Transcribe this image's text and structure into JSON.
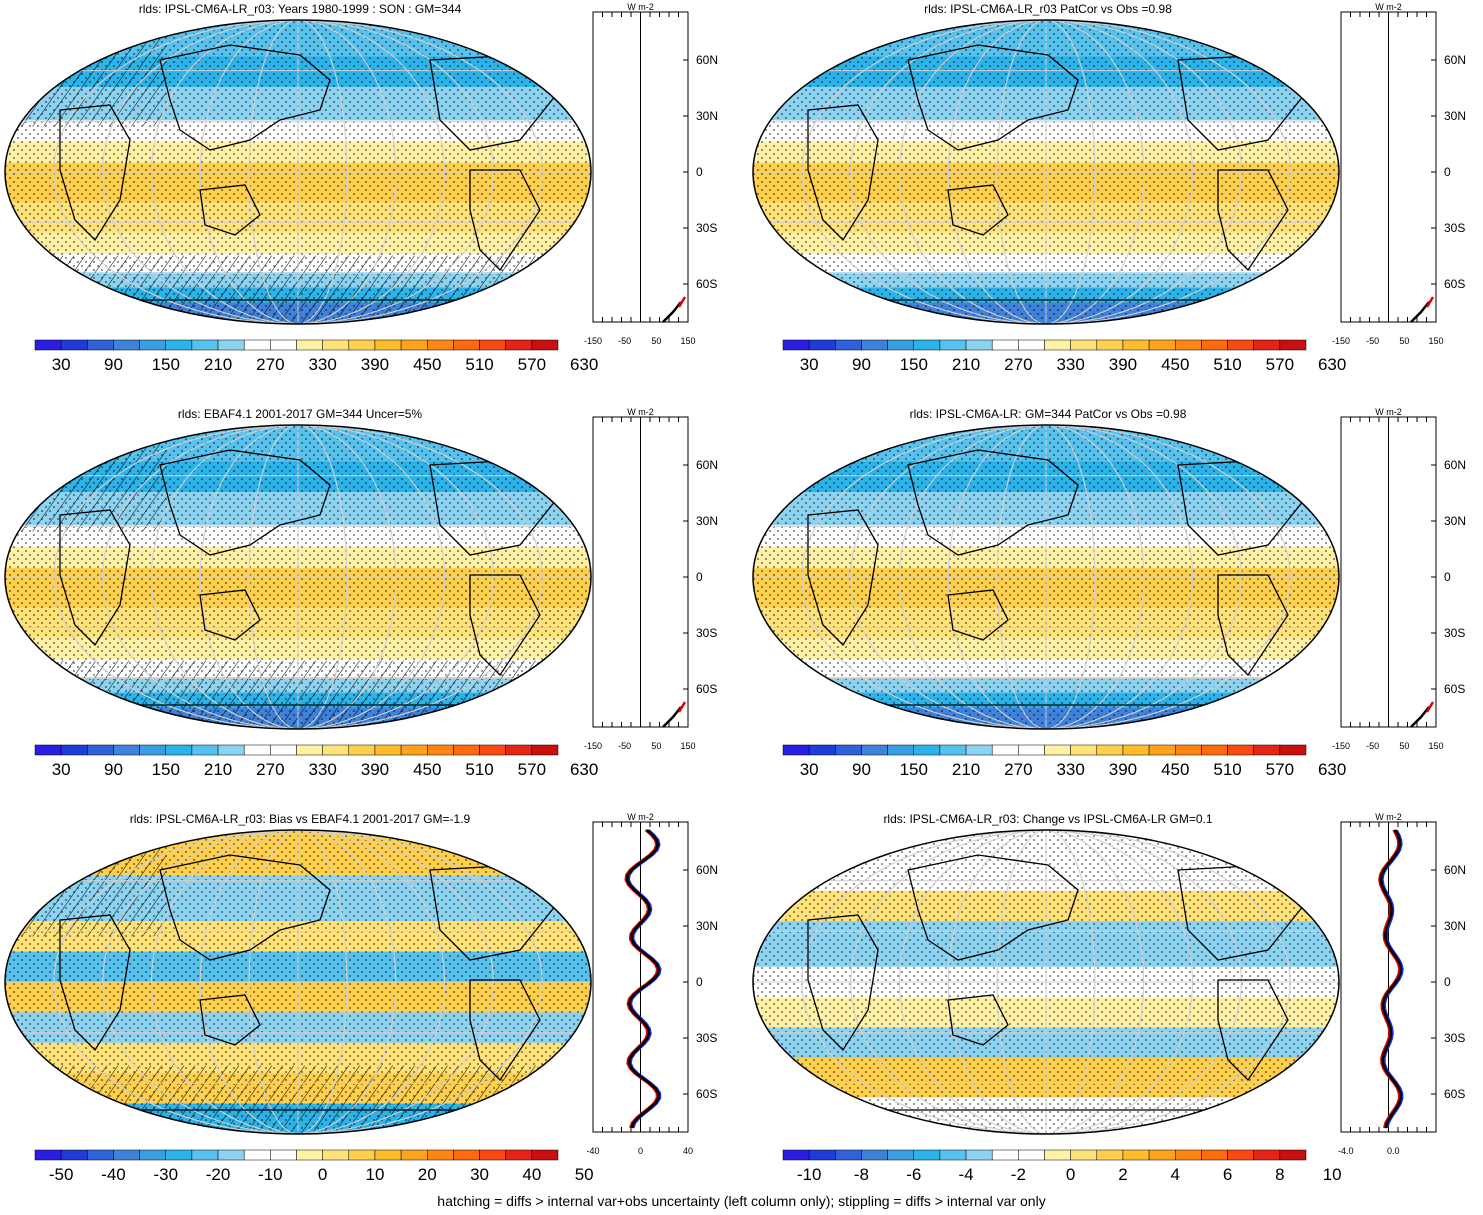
{
  "panels": [
    {
      "title": "rlds: IPSL-CM6A-LR_r03: Years 1980-1999 : SON : GM=344",
      "colorbar": [
        "30",
        "90",
        "150",
        "210",
        "270",
        "330",
        "390",
        "450",
        "510",
        "570",
        "630"
      ],
      "profile_ticks": [
        "-150",
        "-50",
        "50",
        "150"
      ],
      "unit": "W m-2",
      "hatching": true,
      "scheme": "abs"
    },
    {
      "title": "rlds: IPSL-CM6A-LR_r03 PatCor vs Obs =0.98",
      "colorbar": [
        "30",
        "90",
        "150",
        "210",
        "270",
        "330",
        "390",
        "450",
        "510",
        "570",
        "630"
      ],
      "profile_ticks": [
        "-150",
        "-50",
        "50",
        "150"
      ],
      "unit": "W m-2",
      "hatching": false,
      "scheme": "abs"
    },
    {
      "title": "rlds: EBAF4.1 2001-2017 GM=344 Uncer=5%",
      "colorbar": [
        "30",
        "90",
        "150",
        "210",
        "270",
        "330",
        "390",
        "450",
        "510",
        "570",
        "630"
      ],
      "profile_ticks": [
        "-150",
        "-50",
        "50",
        "150"
      ],
      "unit": "W m-2",
      "hatching": true,
      "scheme": "abs"
    },
    {
      "title": "rlds: IPSL-CM6A-LR: GM=344 PatCor vs Obs =0.98",
      "colorbar": [
        "30",
        "90",
        "150",
        "210",
        "270",
        "330",
        "390",
        "450",
        "510",
        "570",
        "630"
      ],
      "profile_ticks": [
        "-150",
        "-50",
        "50",
        "150"
      ],
      "unit": "W m-2",
      "hatching": false,
      "scheme": "abs"
    },
    {
      "title": "rlds: IPSL-CM6A-LR_r03: Bias vs EBAF4.1 2001-2017  GM=-1.9",
      "colorbar": [
        "-50",
        "-40",
        "-30",
        "-20",
        "-10",
        "0",
        "10",
        "20",
        "30",
        "40",
        "50"
      ],
      "profile_ticks": [
        "-40",
        "0",
        "40"
      ],
      "unit": "W m-2",
      "hatching": true,
      "scheme": "bias"
    },
    {
      "title": "rlds: IPSL-CM6A-LR_r03: Change vs IPSL-CM6A-LR GM=0.1",
      "colorbar": [
        "-10",
        "-8",
        "-6",
        "-4",
        "-2",
        "0",
        "2",
        "4",
        "6",
        "8",
        "10"
      ],
      "profile_ticks": [
        "-4.0",
        "0.0"
      ],
      "unit": "W m-2",
      "hatching": false,
      "scheme": "change"
    }
  ],
  "lat_labels": [
    "60N",
    "30N",
    "0",
    "30S",
    "60S"
  ],
  "palette": [
    "#2a1ee0",
    "#1e3cd6",
    "#2f62d8",
    "#3f82dc",
    "#3a9fe2",
    "#2bb3ea",
    "#58c2ee",
    "#8cd3f2",
    "#ffffff",
    "#ffffff",
    "#fff2a6",
    "#ffe27a",
    "#ffd04e",
    "#ffbd2c",
    "#ffa21c",
    "#ff8614",
    "#ff6a10",
    "#f84a12",
    "#e42416",
    "#c9100f"
  ],
  "footer": "hatching = diffs > internal var+obs uncertainty (left column only); stippling = diffs > internal var only"
}
